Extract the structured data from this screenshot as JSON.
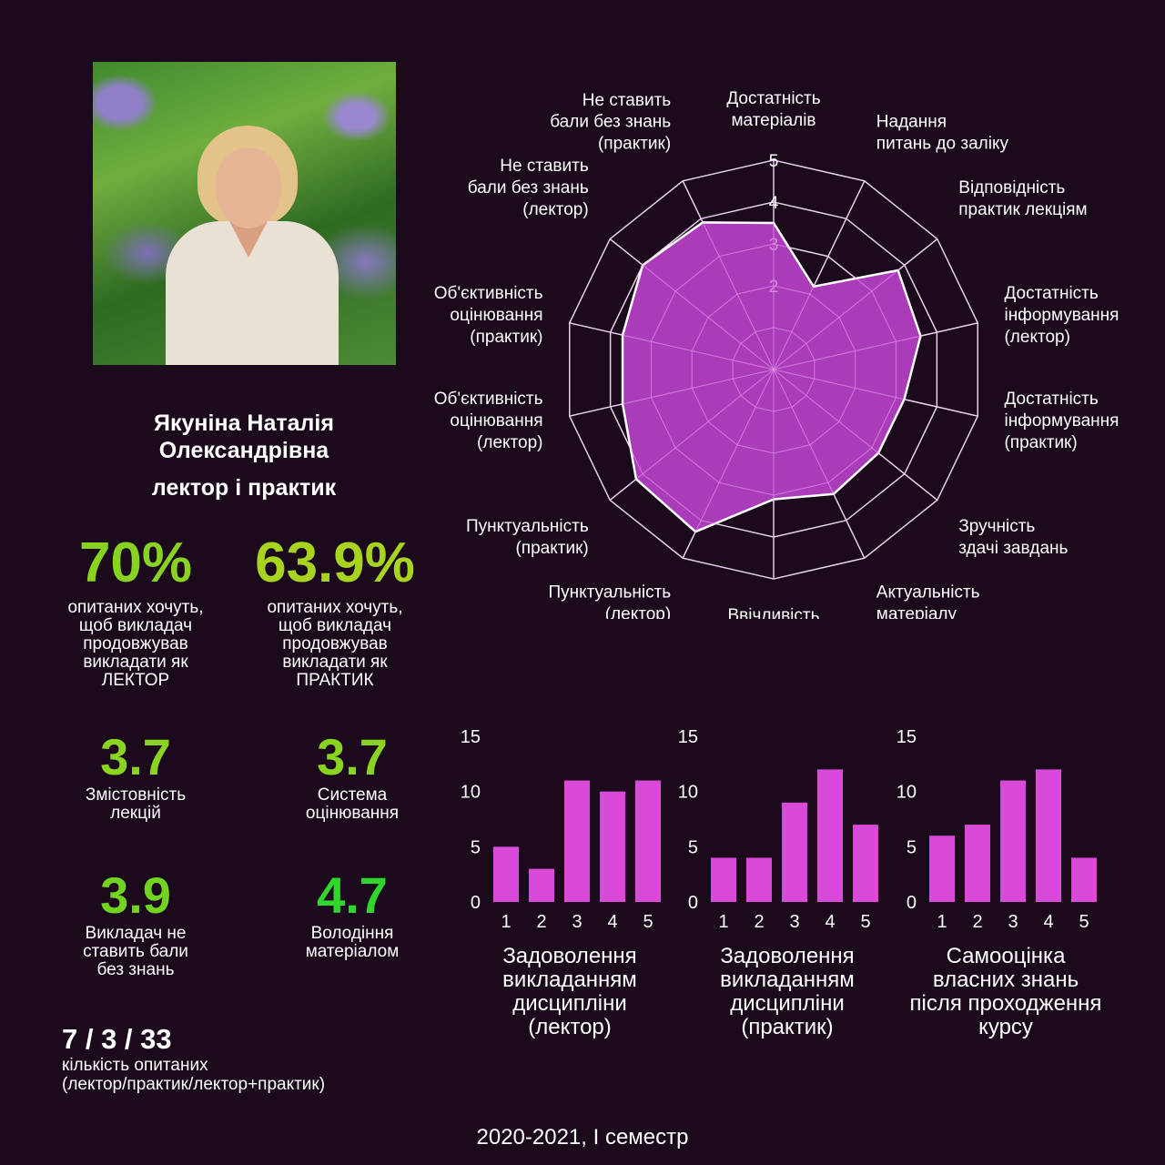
{
  "profile": {
    "name_line1": "Якуніна Наталія",
    "name_line2": "Олександрівна",
    "role": "лектор і практик"
  },
  "stats": {
    "lector_pct": {
      "value": "70%",
      "desc_lines": [
        "опитаних хочуть,",
        "щоб викладач",
        "продовжував",
        "викладати як",
        "ЛЕКТОР"
      ],
      "color": "#88d320"
    },
    "practic_pct": {
      "value": "63.9%",
      "desc_lines": [
        "опитаних хочуть,",
        "щоб викладач",
        "продовжував",
        "викладати як",
        "ПРАКТИК"
      ],
      "color": "#a8d420"
    },
    "content": {
      "value": "3.7",
      "desc_lines": [
        "Змістовність",
        "лекцій"
      ],
      "color": "#8ad321"
    },
    "grading": {
      "value": "3.7",
      "desc_lines": [
        "Система",
        "оцінювання"
      ],
      "color": "#8ad321"
    },
    "fair": {
      "value": "3.9",
      "desc_lines": [
        "Викладач не",
        "ставить бали",
        "без знань"
      ],
      "color": "#72d320"
    },
    "mastery": {
      "value": "4.7",
      "desc_lines": [
        "Володіння",
        "матеріалом"
      ],
      "color": "#2fd62b"
    }
  },
  "respondents": {
    "value": "7 / 3 / 33",
    "desc_lines": [
      "кількість опитаних",
      "(лектор/практик/лектор+практик)"
    ]
  },
  "semester": "2020-2021, I семестр",
  "colors": {
    "accent": "#d94ad9",
    "radar_fill": "#b23ec2",
    "background": "#1a0a1c"
  },
  "chart_data": [
    {
      "type": "radar",
      "rlim": [
        0,
        5
      ],
      "ticks": [
        "2",
        "3",
        "4",
        "5"
      ],
      "axes": [
        {
          "label_lines": [
            "Достатність",
            "матеріалів"
          ],
          "value": 3.5
        },
        {
          "label_lines": [
            "Надання",
            "питань до заліку"
          ],
          "value": 2.2
        },
        {
          "label_lines": [
            "Відповідність",
            "практик лекціям"
          ],
          "value": 3.8
        },
        {
          "label_lines": [
            "Достатність",
            "інформування",
            "(лектор)"
          ],
          "value": 3.6
        },
        {
          "label_lines": [
            "Достатність",
            "інформування",
            "(практик)"
          ],
          "value": 3.2
        },
        {
          "label_lines": [
            "Зручність",
            "здачі завдань"
          ],
          "value": 3.2
        },
        {
          "label_lines": [
            "Актуальність",
            "матеріалу"
          ],
          "value": 3.3
        },
        {
          "label_lines": [
            "Ввічливість"
          ],
          "value": 3.1
        },
        {
          "label_lines": [
            "Пунктуальність",
            "(лектор)"
          ],
          "value": 4.3
        },
        {
          "label_lines": [
            "Пунктуальність",
            "(практик)"
          ],
          "value": 4.2
        },
        {
          "label_lines": [
            "Об'єктивність",
            "оцінювання",
            "(лектор)"
          ],
          "value": 3.7
        },
        {
          "label_lines": [
            "Об'єктивність",
            "оцінювання",
            "(практик)"
          ],
          "value": 3.7
        },
        {
          "label_lines": [
            "Не ставить",
            "бали без знань",
            "(лектор)"
          ],
          "value": 4.0
        },
        {
          "label_lines": [
            "Не ставить",
            "бали без знань",
            "(практик)"
          ],
          "value": 3.9
        }
      ]
    },
    {
      "type": "bar",
      "title_lines": [
        "Задоволення",
        "викладанням",
        "дисципліни",
        "(лектор)"
      ],
      "categories": [
        "1",
        "2",
        "3",
        "4",
        "5"
      ],
      "values": [
        5,
        3,
        11,
        10,
        11
      ],
      "ylim": [
        0,
        15
      ],
      "yticks": [
        "0",
        "5",
        "10",
        "15"
      ]
    },
    {
      "type": "bar",
      "title_lines": [
        "Задоволення",
        "викладанням",
        "дисципліни",
        "(практик)"
      ],
      "categories": [
        "1",
        "2",
        "3",
        "4",
        "5"
      ],
      "values": [
        4,
        4,
        9,
        12,
        7
      ],
      "ylim": [
        0,
        15
      ],
      "yticks": [
        "0",
        "5",
        "10",
        "15"
      ]
    },
    {
      "type": "bar",
      "title_lines": [
        "Самооцінка",
        "власних знань",
        "після проходження",
        "курсу"
      ],
      "categories": [
        "1",
        "2",
        "3",
        "4",
        "5"
      ],
      "values": [
        6,
        7,
        11,
        12,
        4
      ],
      "ylim": [
        0,
        15
      ],
      "yticks": [
        "0",
        "5",
        "10",
        "15"
      ]
    }
  ]
}
